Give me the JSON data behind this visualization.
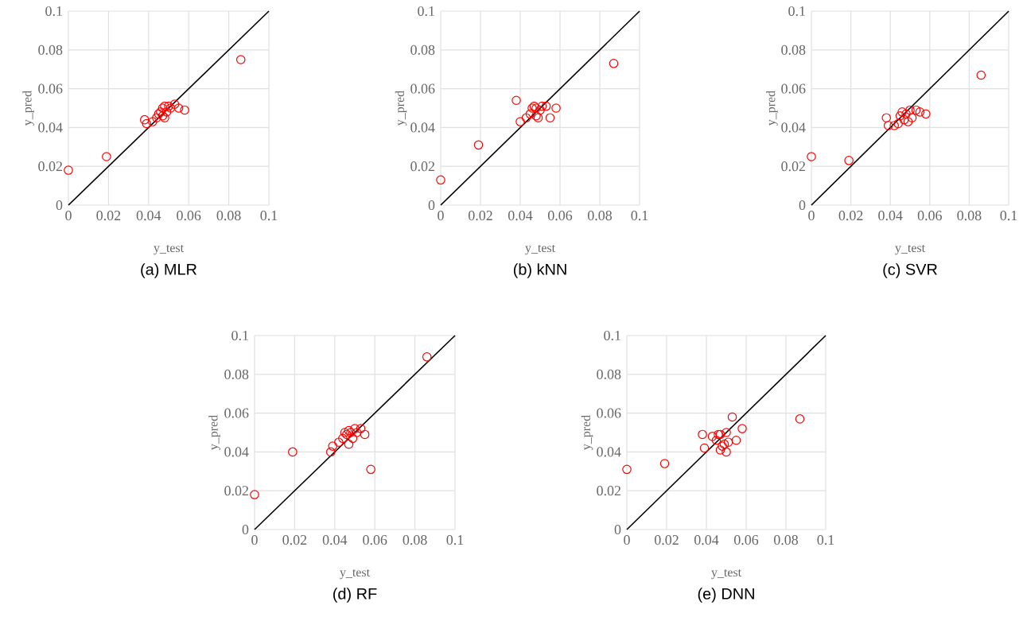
{
  "chart_data": [
    {
      "type": "scatter",
      "title": "(a)  MLR",
      "xlabel": "y_test",
      "ylabel": "y_pred",
      "xlim": [
        0,
        0.1
      ],
      "ylim": [
        0,
        0.1
      ],
      "xticks": [
        0,
        0.02,
        0.04,
        0.06,
        0.08,
        0.1
      ],
      "yticks": [
        0,
        0.02,
        0.04,
        0.06,
        0.08,
        0.1
      ],
      "grid": true,
      "series": [
        {
          "marker": "circle",
          "color": "#ff0000",
          "x": [
            0,
            0.019,
            0.038,
            0.039,
            0.042,
            0.044,
            0.045,
            0.046,
            0.047,
            0.047,
            0.048,
            0.048,
            0.049,
            0.05,
            0.051,
            0.053,
            0.055,
            0.058,
            0.086
          ],
          "values": [
            0.018,
            0.025,
            0.044,
            0.042,
            0.043,
            0.045,
            0.047,
            0.048,
            0.05,
            0.046,
            0.051,
            0.045,
            0.048,
            0.051,
            0.05,
            0.052,
            0.05,
            0.049,
            0.075
          ]
        },
        {
          "type": "line",
          "marker": "none",
          "color": "#000000",
          "x": [
            0,
            0.1
          ],
          "values": [
            0,
            0.1
          ]
        }
      ]
    },
    {
      "type": "scatter",
      "title": "(b)  kNN",
      "xlabel": "y_test",
      "ylabel": "y_pred",
      "xlim": [
        0,
        0.1
      ],
      "ylim": [
        0,
        0.1
      ],
      "xticks": [
        0,
        0.02,
        0.04,
        0.06,
        0.08,
        0.1
      ],
      "yticks": [
        0,
        0.02,
        0.04,
        0.06,
        0.08,
        0.1
      ],
      "grid": true,
      "series": [
        {
          "marker": "circle",
          "color": "#ff0000",
          "x": [
            0,
            0.019,
            0.038,
            0.04,
            0.043,
            0.045,
            0.046,
            0.047,
            0.048,
            0.048,
            0.049,
            0.05,
            0.051,
            0.053,
            0.055,
            0.058,
            0.087
          ],
          "values": [
            0.013,
            0.031,
            0.054,
            0.043,
            0.045,
            0.047,
            0.05,
            0.051,
            0.046,
            0.05,
            0.045,
            0.049,
            0.051,
            0.051,
            0.045,
            0.05,
            0.073
          ]
        },
        {
          "type": "line",
          "marker": "none",
          "color": "#000000",
          "x": [
            0,
            0.1
          ],
          "values": [
            0,
            0.1
          ]
        }
      ]
    },
    {
      "type": "scatter",
      "title": "(c)  SVR",
      "xlabel": "y_test",
      "ylabel": "y_pred",
      "xlim": [
        0,
        0.1
      ],
      "ylim": [
        0,
        0.1
      ],
      "xticks": [
        0,
        0.02,
        0.04,
        0.06,
        0.08,
        0.1
      ],
      "yticks": [
        0,
        0.02,
        0.04,
        0.06,
        0.08,
        0.1
      ],
      "grid": true,
      "series": [
        {
          "marker": "circle",
          "color": "#ff0000",
          "x": [
            0,
            0.019,
            0.038,
            0.039,
            0.042,
            0.044,
            0.045,
            0.046,
            0.047,
            0.048,
            0.049,
            0.05,
            0.051,
            0.053,
            0.055,
            0.058,
            0.086
          ],
          "values": [
            0.025,
            0.023,
            0.045,
            0.041,
            0.041,
            0.042,
            0.046,
            0.048,
            0.044,
            0.047,
            0.043,
            0.049,
            0.045,
            0.049,
            0.048,
            0.047,
            0.067
          ]
        },
        {
          "type": "line",
          "marker": "none",
          "color": "#000000",
          "x": [
            0,
            0.1
          ],
          "values": [
            0,
            0.1
          ]
        }
      ]
    },
    {
      "type": "scatter",
      "title": "(d)  RF",
      "xlabel": "y_test",
      "ylabel": "y_pred",
      "xlim": [
        0,
        0.1
      ],
      "ylim": [
        0,
        0.1
      ],
      "xticks": [
        0,
        0.02,
        0.04,
        0.06,
        0.08,
        0.1
      ],
      "yticks": [
        0,
        0.02,
        0.04,
        0.06,
        0.08,
        0.1
      ],
      "grid": true,
      "series": [
        {
          "marker": "circle",
          "color": "#ff0000",
          "x": [
            0,
            0.019,
            0.038,
            0.039,
            0.042,
            0.044,
            0.045,
            0.046,
            0.047,
            0.047,
            0.048,
            0.049,
            0.05,
            0.051,
            0.053,
            0.055,
            0.058,
            0.086
          ],
          "values": [
            0.018,
            0.04,
            0.04,
            0.043,
            0.045,
            0.047,
            0.05,
            0.049,
            0.051,
            0.044,
            0.05,
            0.047,
            0.052,
            0.05,
            0.052,
            0.049,
            0.031,
            0.089
          ]
        },
        {
          "type": "line",
          "marker": "none",
          "color": "#000000",
          "x": [
            0,
            0.1
          ],
          "values": [
            0,
            0.1
          ]
        }
      ]
    },
    {
      "type": "scatter",
      "title": "(e)  DNN",
      "xlabel": "y_test",
      "ylabel": "y_pred",
      "xlim": [
        0,
        0.1
      ],
      "ylim": [
        0,
        0.1
      ],
      "xticks": [
        0,
        0.02,
        0.04,
        0.06,
        0.08,
        0.1
      ],
      "yticks": [
        0,
        0.02,
        0.04,
        0.06,
        0.08,
        0.1
      ],
      "grid": true,
      "series": [
        {
          "marker": "circle",
          "color": "#ff0000",
          "x": [
            0,
            0.019,
            0.038,
            0.039,
            0.043,
            0.045,
            0.046,
            0.047,
            0.047,
            0.048,
            0.049,
            0.05,
            0.05,
            0.051,
            0.053,
            0.055,
            0.058,
            0.087
          ],
          "values": [
            0.031,
            0.034,
            0.049,
            0.042,
            0.048,
            0.046,
            0.049,
            0.041,
            0.049,
            0.043,
            0.044,
            0.04,
            0.05,
            0.045,
            0.058,
            0.046,
            0.052,
            0.057
          ]
        },
        {
          "type": "line",
          "marker": "none",
          "color": "#000000",
          "x": [
            0,
            0.1
          ],
          "values": [
            0,
            0.1
          ]
        }
      ]
    }
  ]
}
